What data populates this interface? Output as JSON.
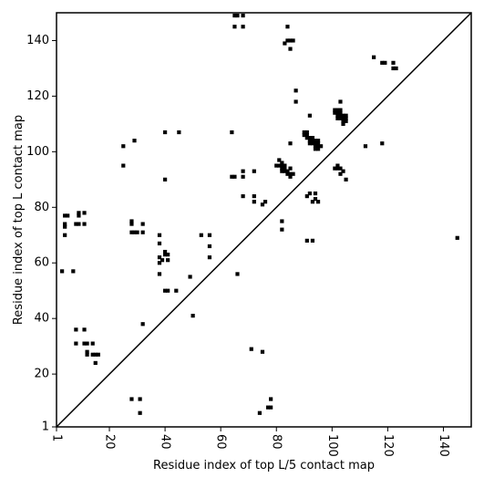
{
  "chart_data": {
    "type": "scatter",
    "title": "",
    "xlabel": "Residue index of top L/5 contact map",
    "ylabel": "Residue index of top L contact map",
    "xlim": [
      1,
      150
    ],
    "ylim": [
      1,
      150
    ],
    "xticks": [
      1,
      20,
      40,
      60,
      80,
      100,
      120,
      140
    ],
    "yticks": [
      1,
      20,
      40,
      60,
      80,
      100,
      120,
      140
    ],
    "x_tick_label_rotation": 90,
    "grid": false,
    "legend": "none",
    "marker": "square",
    "marker_color": "#000000",
    "reference_line": {
      "from": [
        1,
        1
      ],
      "to": [
        150,
        150
      ],
      "color": "#000000"
    },
    "points": [
      [
        3,
        57
      ],
      [
        4,
        70
      ],
      [
        4,
        73
      ],
      [
        4,
        74
      ],
      [
        4,
        77
      ],
      [
        5,
        77
      ],
      [
        7,
        57
      ],
      [
        8,
        74
      ],
      [
        8,
        31
      ],
      [
        8,
        36
      ],
      [
        9,
        74
      ],
      [
        9,
        77
      ],
      [
        9,
        78
      ],
      [
        11,
        74
      ],
      [
        11,
        78
      ],
      [
        11,
        31
      ],
      [
        11,
        36
      ],
      [
        12,
        31
      ],
      [
        12,
        27
      ],
      [
        12,
        28
      ],
      [
        14,
        31
      ],
      [
        14,
        27
      ],
      [
        15,
        27
      ],
      [
        15,
        24
      ],
      [
        16,
        27
      ],
      [
        25,
        102
      ],
      [
        25,
        95
      ],
      [
        28,
        75
      ],
      [
        28,
        74
      ],
      [
        28,
        71
      ],
      [
        28,
        11
      ],
      [
        29,
        104
      ],
      [
        29,
        71
      ],
      [
        30,
        71
      ],
      [
        31,
        11
      ],
      [
        31,
        6
      ],
      [
        32,
        74
      ],
      [
        32,
        71
      ],
      [
        32,
        38
      ],
      [
        38,
        70
      ],
      [
        38,
        67
      ],
      [
        38,
        62
      ],
      [
        38,
        60
      ],
      [
        38,
        56
      ],
      [
        39,
        61
      ],
      [
        40,
        64
      ],
      [
        40,
        63
      ],
      [
        40,
        50
      ],
      [
        41,
        63
      ],
      [
        41,
        50
      ],
      [
        41,
        61
      ],
      [
        40,
        107
      ],
      [
        40,
        90
      ],
      [
        45,
        107
      ],
      [
        44,
        50
      ],
      [
        49,
        55
      ],
      [
        50,
        41
      ],
      [
        53,
        70
      ],
      [
        56,
        70
      ],
      [
        56,
        66
      ],
      [
        56,
        62
      ],
      [
        64,
        107
      ],
      [
        64,
        91
      ],
      [
        65,
        91
      ],
      [
        65,
        145
      ],
      [
        65,
        149
      ],
      [
        66,
        149
      ],
      [
        66,
        56
      ],
      [
        68,
        145
      ],
      [
        68,
        149
      ],
      [
        68,
        84
      ],
      [
        68,
        91
      ],
      [
        68,
        93
      ],
      [
        71,
        29
      ],
      [
        72,
        93
      ],
      [
        72,
        84
      ],
      [
        72,
        82
      ],
      [
        74,
        6
      ],
      [
        75,
        28
      ],
      [
        75,
        81
      ],
      [
        76,
        82
      ],
      [
        77,
        8
      ],
      [
        78,
        8
      ],
      [
        78,
        11
      ],
      [
        80,
        95
      ],
      [
        81,
        97
      ],
      [
        81,
        95
      ],
      [
        82,
        96
      ],
      [
        82,
        95
      ],
      [
        82,
        94
      ],
      [
        82,
        93
      ],
      [
        82,
        75
      ],
      [
        82,
        72
      ],
      [
        83,
        95
      ],
      [
        83,
        94
      ],
      [
        83,
        93
      ],
      [
        83,
        139
      ],
      [
        84,
        140
      ],
      [
        84,
        93
      ],
      [
        84,
        92
      ],
      [
        84,
        145
      ],
      [
        85,
        92
      ],
      [
        85,
        91
      ],
      [
        85,
        94
      ],
      [
        85,
        137
      ],
      [
        85,
        140
      ],
      [
        85,
        103
      ],
      [
        86,
        140
      ],
      [
        86,
        92
      ],
      [
        87,
        122
      ],
      [
        87,
        118
      ],
      [
        90,
        107
      ],
      [
        90,
        106
      ],
      [
        91,
        107
      ],
      [
        91,
        106
      ],
      [
        91,
        105
      ],
      [
        91,
        84
      ],
      [
        91,
        68
      ],
      [
        92,
        113
      ],
      [
        92,
        105
      ],
      [
        92,
        104
      ],
      [
        92,
        103
      ],
      [
        92,
        85
      ],
      [
        93,
        105
      ],
      [
        93,
        104
      ],
      [
        93,
        103
      ],
      [
        93,
        82
      ],
      [
        93,
        68
      ],
      [
        94,
        104
      ],
      [
        94,
        103
      ],
      [
        94,
        102
      ],
      [
        94,
        101
      ],
      [
        94,
        85
      ],
      [
        94,
        83
      ],
      [
        95,
        104
      ],
      [
        95,
        103
      ],
      [
        95,
        102
      ],
      [
        95,
        101
      ],
      [
        95,
        82
      ],
      [
        96,
        102
      ],
      [
        101,
        115
      ],
      [
        101,
        114
      ],
      [
        101,
        94
      ],
      [
        102,
        115
      ],
      [
        102,
        114
      ],
      [
        102,
        113
      ],
      [
        102,
        112
      ],
      [
        102,
        95
      ],
      [
        102,
        94
      ],
      [
        103,
        118
      ],
      [
        103,
        115
      ],
      [
        103,
        114
      ],
      [
        103,
        113
      ],
      [
        103,
        112
      ],
      [
        103,
        92
      ],
      [
        103,
        94
      ],
      [
        104,
        113
      ],
      [
        104,
        112
      ],
      [
        104,
        111
      ],
      [
        104,
        110
      ],
      [
        104,
        93
      ],
      [
        105,
        113
      ],
      [
        105,
        112
      ],
      [
        105,
        111
      ],
      [
        105,
        90
      ],
      [
        112,
        102
      ],
      [
        115,
        134
      ],
      [
        118,
        132
      ],
      [
        118,
        103
      ],
      [
        119,
        132
      ],
      [
        122,
        132
      ],
      [
        122,
        130
      ],
      [
        123,
        130
      ],
      [
        145,
        69
      ]
    ]
  }
}
